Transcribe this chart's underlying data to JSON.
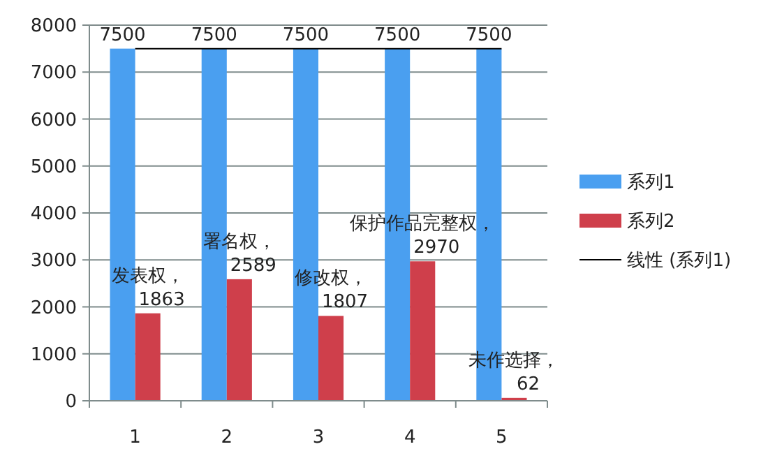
{
  "chart_data": {
    "type": "bar",
    "categories": [
      "1",
      "2",
      "3",
      "4",
      "5"
    ],
    "series": [
      {
        "name": "系列1",
        "color": "#4a9ff0",
        "values": [
          7500,
          7500,
          7500,
          7500,
          7500
        ],
        "value_labels": [
          "7500",
          "7500",
          "7500",
          "7500",
          "7500"
        ]
      },
      {
        "name": "系列2",
        "color": "#cf3f4b",
        "values": [
          1863,
          2589,
          1807,
          2970,
          62
        ],
        "value_labels": [
          "发表权，1863",
          "署名权，2589",
          "修改权，1807",
          "保护作品完整权，2970",
          "未作选择，62"
        ]
      },
      {
        "name": "线性 (系列1)",
        "type": "line",
        "color": "#000000",
        "values": [
          7500,
          7500,
          7500,
          7500,
          7500
        ]
      }
    ],
    "ylim": [
      0,
      8000
    ],
    "yticks": [
      0,
      1000,
      2000,
      3000,
      4000,
      5000,
      6000,
      7000,
      8000
    ],
    "grid": "y",
    "legend": "right"
  }
}
